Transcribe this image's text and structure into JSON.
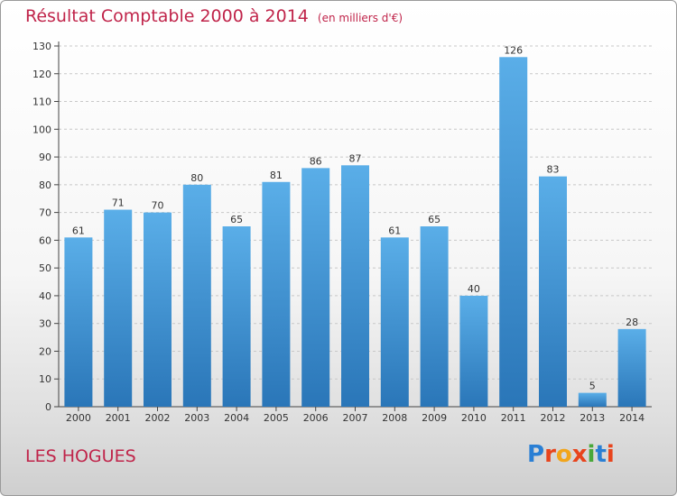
{
  "header": {
    "title": "Résultat Comptable 2000 à 2014",
    "unit": "(en milliers d'€)"
  },
  "footer": {
    "place": "LES HOGUES",
    "logo": "Proxiti"
  },
  "colors": {
    "title": "#c0244a",
    "bar_top": "#5aaee8",
    "bar_bottom": "#2a76b8",
    "logo": [
      "#2a7fd4",
      "#e8441c",
      "#f2a51a",
      "#e8441c",
      "#49a83a",
      "#2a7fd4",
      "#e8441c"
    ]
  },
  "chart_data": {
    "type": "bar",
    "title": "Résultat Comptable 2000 à 2014",
    "subtitle": "(en milliers d'€)",
    "xlabel": "",
    "ylabel": "",
    "categories": [
      "2000",
      "2001",
      "2002",
      "2003",
      "2004",
      "2005",
      "2006",
      "2007",
      "2008",
      "2009",
      "2010",
      "2011",
      "2012",
      "2013",
      "2014"
    ],
    "values": [
      61,
      71,
      70,
      80,
      65,
      81,
      86,
      87,
      61,
      65,
      40,
      126,
      83,
      5,
      28
    ],
    "ylim": [
      0,
      130
    ],
    "yticks": [
      0,
      10,
      20,
      30,
      40,
      50,
      60,
      70,
      80,
      90,
      100,
      110,
      120,
      130
    ],
    "grid": true,
    "legend": "none"
  }
}
